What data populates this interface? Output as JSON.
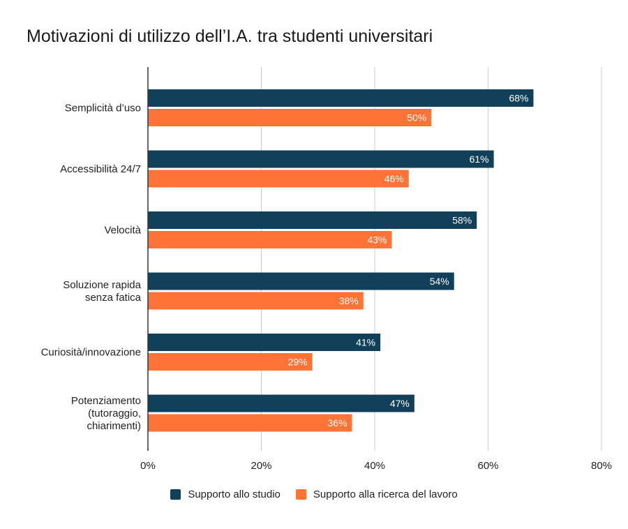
{
  "chart_data": {
    "type": "bar",
    "orientation": "horizontal",
    "title": "Motivazioni di utilizzo dell’I.A. tra studenti universitari",
    "categories": [
      [
        "Semplicità d’uso"
      ],
      [
        "Accessibilità 24/7"
      ],
      [
        "Velocità"
      ],
      [
        "Soluzione rapida",
        "senza fatica"
      ],
      [
        "Curiosità/innovazione"
      ],
      [
        "Potenziamento",
        "(tutoraggio,",
        "chiarimenti)"
      ]
    ],
    "series": [
      {
        "name": "Supporto allo studio",
        "color": "#123f5a",
        "values": [
          68,
          61,
          58,
          54,
          41,
          47
        ]
      },
      {
        "name": "Supporto alla ricerca del lavoro",
        "color": "#ff7336",
        "values": [
          50,
          46,
          43,
          38,
          29,
          36
        ]
      }
    ],
    "xlim": [
      0,
      80
    ],
    "xticks": [
      "0%",
      "20%",
      "40%",
      "60%",
      "80%"
    ],
    "value_suffix": "%",
    "grid": true,
    "legend_position": "bottom"
  }
}
